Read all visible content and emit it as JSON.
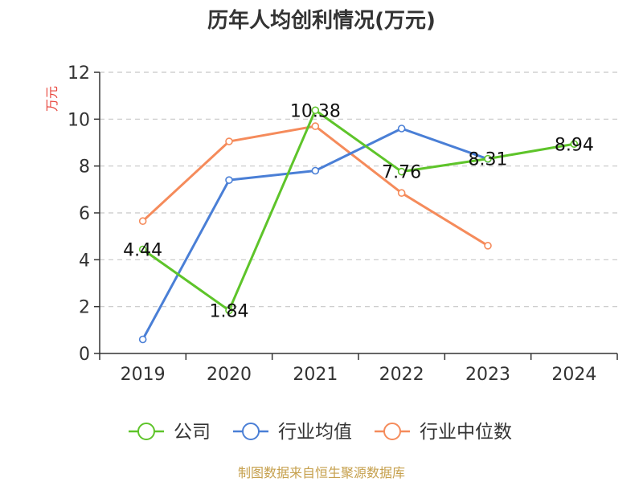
{
  "chart_data": {
    "type": "line",
    "title": "历年人均创利情况(万元)",
    "ylabel": "万元",
    "ylim": [
      0,
      12
    ],
    "yticks": [
      0,
      2,
      4,
      6,
      8,
      10,
      12
    ],
    "categories": [
      "2019",
      "2020",
      "2021",
      "2022",
      "2023",
      "2024"
    ],
    "grid": true,
    "legend_position": "bottom",
    "series": [
      {
        "name": "公司",
        "color": "#5ec42a",
        "values": [
          4.44,
          1.84,
          10.38,
          7.76,
          8.31,
          8.94
        ],
        "labels": [
          "4.44",
          "1.84",
          "10.38",
          "7.76",
          "8.31",
          "8.94"
        ]
      },
      {
        "name": "行业均值",
        "color": "#4a7fd6",
        "values": [
          0.6,
          7.4,
          7.8,
          9.6,
          8.3,
          null
        ]
      },
      {
        "name": "行业中位数",
        "color": "#f58b5b",
        "values": [
          5.65,
          9.05,
          9.7,
          6.85,
          4.6,
          null
        ]
      }
    ]
  },
  "source": "制图数据来自恒生聚源数据库"
}
